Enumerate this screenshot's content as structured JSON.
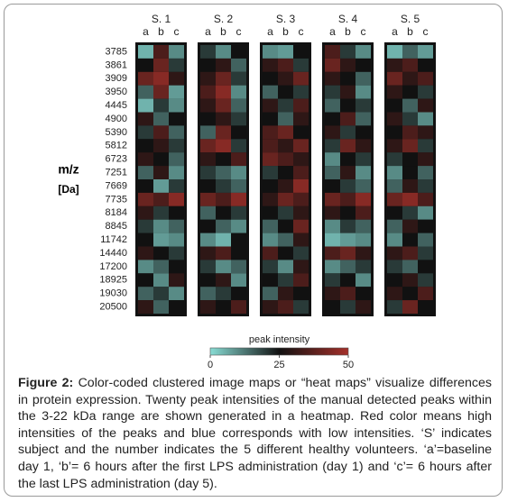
{
  "chart_data": {
    "type": "heatmap",
    "y_label": "m/z",
    "y_unit": "[Da]",
    "categories": [
      "3785",
      "3861",
      "3909",
      "3950",
      "4445",
      "4900",
      "5390",
      "5812",
      "6723",
      "7251",
      "7669",
      "7735",
      "8184",
      "8845",
      "11742",
      "14440",
      "17200",
      "18925",
      "19030",
      "20500"
    ],
    "groups": [
      {
        "name": "S. 1",
        "columns": [
          "a",
          "b",
          "c"
        ],
        "values": [
          [
            5,
            35,
            10
          ],
          [
            25,
            40,
            20
          ],
          [
            40,
            45,
            30
          ],
          [
            15,
            40,
            8
          ],
          [
            5,
            20,
            10
          ],
          [
            30,
            15,
            25
          ],
          [
            20,
            35,
            15
          ],
          [
            25,
            30,
            20
          ],
          [
            30,
            25,
            15
          ],
          [
            15,
            30,
            10
          ],
          [
            25,
            8,
            20
          ],
          [
            40,
            35,
            45
          ],
          [
            30,
            20,
            25
          ],
          [
            20,
            10,
            15
          ],
          [
            25,
            8,
            10
          ],
          [
            30,
            25,
            20
          ],
          [
            10,
            15,
            25
          ],
          [
            25,
            10,
            30
          ],
          [
            15,
            20,
            10
          ],
          [
            30,
            15,
            25
          ]
        ]
      },
      {
        "name": "S. 2",
        "columns": [
          "a",
          "b",
          "c"
        ],
        "values": [
          [
            20,
            10,
            25
          ],
          [
            25,
            30,
            15
          ],
          [
            30,
            40,
            20
          ],
          [
            35,
            45,
            10
          ],
          [
            30,
            40,
            15
          ],
          [
            25,
            30,
            20
          ],
          [
            15,
            40,
            25
          ],
          [
            40,
            45,
            20
          ],
          [
            30,
            25,
            35
          ],
          [
            20,
            15,
            10
          ],
          [
            25,
            20,
            15
          ],
          [
            40,
            35,
            45
          ],
          [
            15,
            25,
            20
          ],
          [
            25,
            15,
            10
          ],
          [
            10,
            5,
            25
          ],
          [
            30,
            35,
            25
          ],
          [
            20,
            10,
            15
          ],
          [
            25,
            30,
            10
          ],
          [
            15,
            20,
            25
          ],
          [
            30,
            25,
            35
          ]
        ]
      },
      {
        "name": "S. 3",
        "columns": [
          "a",
          "b",
          "c"
        ],
        "values": [
          [
            10,
            8,
            25
          ],
          [
            30,
            35,
            20
          ],
          [
            25,
            30,
            40
          ],
          [
            15,
            25,
            20
          ],
          [
            30,
            20,
            35
          ],
          [
            25,
            15,
            30
          ],
          [
            35,
            40,
            25
          ],
          [
            35,
            30,
            40
          ],
          [
            40,
            35,
            30
          ],
          [
            20,
            25,
            35
          ],
          [
            25,
            30,
            45
          ],
          [
            30,
            40,
            35
          ],
          [
            25,
            20,
            30
          ],
          [
            15,
            25,
            40
          ],
          [
            10,
            15,
            30
          ],
          [
            35,
            25,
            20
          ],
          [
            20,
            10,
            30
          ],
          [
            25,
            20,
            35
          ],
          [
            15,
            30,
            25
          ],
          [
            30,
            35,
            20
          ]
        ]
      },
      {
        "name": "S. 4",
        "columns": [
          "a",
          "b",
          "c"
        ],
        "values": [
          [
            35,
            20,
            10
          ],
          [
            40,
            30,
            25
          ],
          [
            30,
            25,
            15
          ],
          [
            20,
            30,
            10
          ],
          [
            15,
            25,
            20
          ],
          [
            25,
            35,
            15
          ],
          [
            30,
            20,
            25
          ],
          [
            20,
            40,
            30
          ],
          [
            10,
            25,
            20
          ],
          [
            15,
            30,
            10
          ],
          [
            25,
            20,
            15
          ],
          [
            40,
            35,
            45
          ],
          [
            30,
            25,
            35
          ],
          [
            10,
            20,
            15
          ],
          [
            5,
            8,
            10
          ],
          [
            35,
            40,
            30
          ],
          [
            10,
            15,
            20
          ],
          [
            20,
            25,
            10
          ],
          [
            30,
            35,
            25
          ],
          [
            25,
            20,
            30
          ]
        ]
      },
      {
        "name": "S. 5",
        "columns": [
          "a",
          "b",
          "c"
        ],
        "values": [
          [
            5,
            15,
            8
          ],
          [
            30,
            35,
            25
          ],
          [
            40,
            30,
            35
          ],
          [
            30,
            25,
            20
          ],
          [
            25,
            15,
            30
          ],
          [
            30,
            20,
            10
          ],
          [
            25,
            35,
            30
          ],
          [
            30,
            40,
            20
          ],
          [
            20,
            25,
            30
          ],
          [
            10,
            25,
            15
          ],
          [
            15,
            30,
            20
          ],
          [
            40,
            45,
            35
          ],
          [
            25,
            20,
            10
          ],
          [
            15,
            30,
            25
          ],
          [
            10,
            25,
            15
          ],
          [
            30,
            35,
            20
          ],
          [
            20,
            15,
            25
          ],
          [
            25,
            30,
            20
          ],
          [
            30,
            25,
            35
          ],
          [
            20,
            40,
            25
          ]
        ]
      }
    ],
    "zlim": [
      0,
      50
    ],
    "zticks": [
      0,
      25,
      50
    ],
    "colorbar_label": "peak intensity",
    "colors": [
      "#88dcd4",
      "#111111",
      "#a4302a"
    ]
  },
  "caption": {
    "label": "Figure 2:",
    "text": "Color-coded clustered image maps or “heat maps” visualize differences in protein expression. Twenty peak intensities of the manual detected peaks within the 3-22 kDa range are shown generated in a heatmap. Red color means high intensities of the peaks and blue corresponds with low intensities. ‘S’ indicates subject and the number indicates the 5 different healthy volunteers. ‘a’=baseline day 1, ‘b’= 6 hours after the first LPS administration (day 1) and ‘c’= 6 hours after the last LPS administration (day 5)."
  }
}
